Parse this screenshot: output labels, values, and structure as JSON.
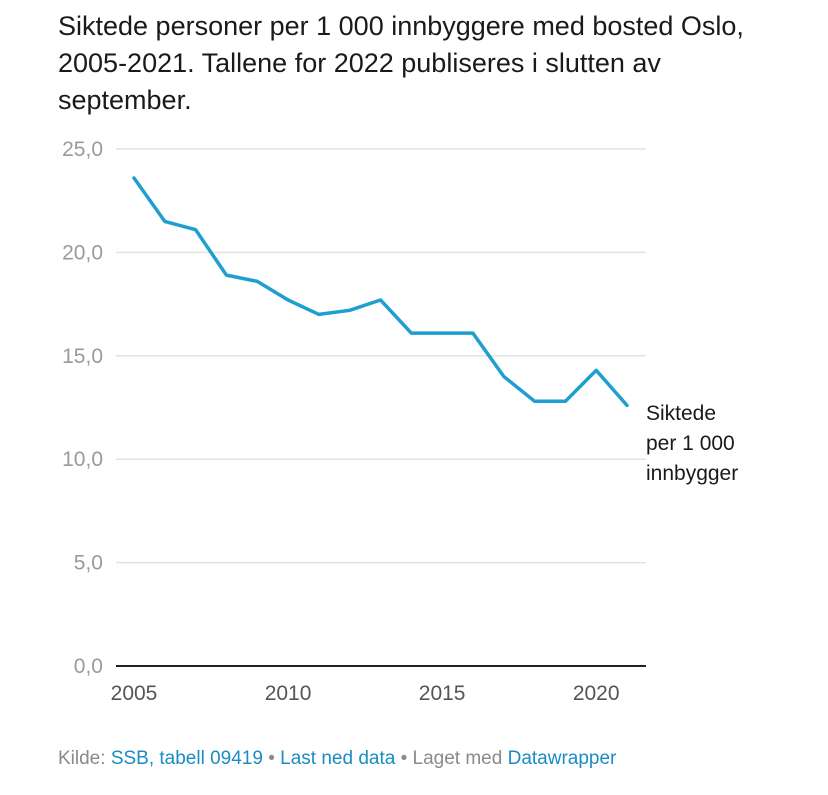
{
  "header": {
    "title": "Siktede personer per 1 000 innbyggere med bosted Oslo, 2005-2021. Tallene for 2022 publiseres i slutten av september."
  },
  "chart_data": {
    "type": "line",
    "title": "Siktede personer per 1 000 innbyggere med bosted Oslo, 2005-2021. Tallene for 2022 publiseres i slutten av september.",
    "xlabel": "",
    "ylabel": "",
    "x": [
      2005,
      2006,
      2007,
      2008,
      2009,
      2010,
      2011,
      2012,
      2013,
      2014,
      2015,
      2016,
      2017,
      2018,
      2019,
      2020,
      2021
    ],
    "series": [
      {
        "name": "Siktede per 1 000 innbygger",
        "label_lines": [
          "Siktede",
          "per 1 000",
          "innbygger"
        ],
        "color": "#1f9fcf",
        "values": [
          23.6,
          21.5,
          21.1,
          18.9,
          18.6,
          17.7,
          17.0,
          17.2,
          17.7,
          16.1,
          16.1,
          16.1,
          14.0,
          12.8,
          12.8,
          14.3,
          12.6
        ]
      }
    ],
    "ylim": [
      0,
      25
    ],
    "xlim": [
      2005,
      2021
    ],
    "yticks": [
      0,
      5,
      10,
      15,
      20,
      25
    ],
    "ytick_labels": [
      "0,0",
      "5,0",
      "10,0",
      "15,0",
      "20,0",
      "25,0"
    ],
    "xticks": [
      2005,
      2010,
      2015,
      2020
    ],
    "xtick_labels": [
      "2005",
      "2010",
      "2015",
      "2020"
    ],
    "grid": true,
    "legend": "direct-label-right"
  },
  "footer": {
    "source_prefix": "Kilde:",
    "source_link": "SSB, tabell 09419",
    "separator": "•",
    "download_link": "Last ned data",
    "made_with": "Laget med",
    "tool_link": "Datawrapper"
  }
}
